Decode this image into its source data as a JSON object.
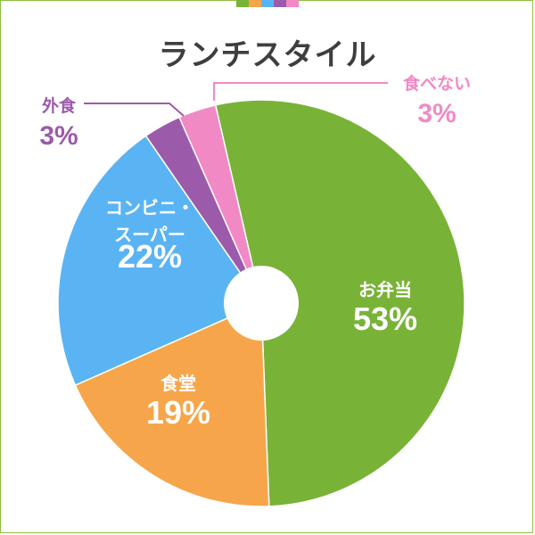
{
  "colors": {
    "frame": "#8dbf3f",
    "tab": [
      "#78b337",
      "#f7a54a",
      "#5ab4f4",
      "#9c5aaa",
      "#f189c5"
    ]
  },
  "chart_data": {
    "type": "pie",
    "title": "ランチスタイル",
    "donut": true,
    "slices": [
      {
        "label": "お弁当",
        "value": 53,
        "value_label": "53%",
        "color": "#78b337"
      },
      {
        "label": "食堂",
        "value": 19,
        "value_label": "19%",
        "color": "#f7a54a"
      },
      {
        "label": "コンビニ・スーパー",
        "label_lines": [
          "コンビニ・",
          "スーパー"
        ],
        "value": 22,
        "value_label": "22%",
        "color": "#5ab4f4"
      },
      {
        "label": "外食",
        "value": 3,
        "value_label": "3%",
        "color": "#9c5aaa"
      },
      {
        "label": "食べない",
        "value": 3,
        "value_label": "3%",
        "color": "#f189c5"
      }
    ]
  }
}
